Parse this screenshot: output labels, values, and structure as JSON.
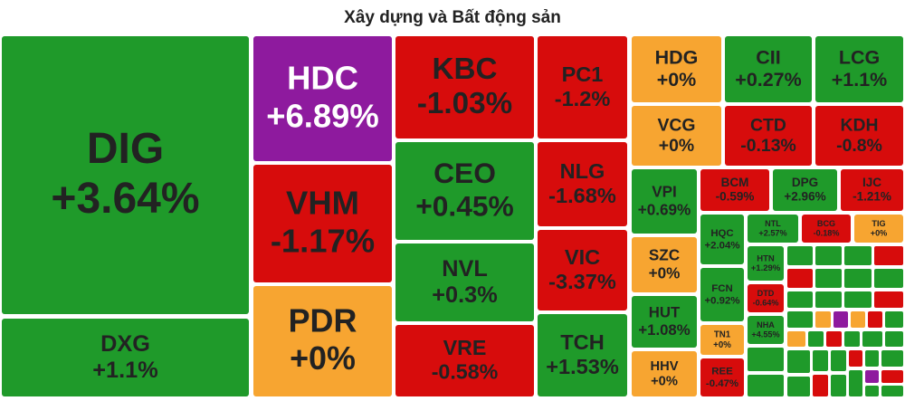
{
  "chart_data": {
    "type": "treemap",
    "title": "Xây dựng và Bất động sản",
    "categories": [
      "DIG",
      "DXG",
      "HDC",
      "VHM",
      "PDR",
      "KBC",
      "CEO",
      "NVL",
      "VRE",
      "PC1",
      "NLG",
      "VIC",
      "TCH",
      "HDG",
      "VCG",
      "CII",
      "LCG",
      "CTD",
      "KDH",
      "VPI",
      "SZC",
      "HUT",
      "HHV",
      "BCM",
      "DPG",
      "IJC",
      "HQC",
      "FCN",
      "TN1",
      "REE",
      "NTL",
      "BCG",
      "TIG",
      "HTN",
      "DTD",
      "NHA"
    ],
    "values": [
      3.64,
      1.1,
      6.89,
      -1.17,
      0,
      -1.03,
      0.45,
      0.3,
      -0.58,
      -1.2,
      -1.68,
      -3.37,
      1.53,
      0,
      0,
      0.27,
      1.1,
      -0.13,
      -0.8,
      0.69,
      0,
      1.08,
      0,
      -0.59,
      2.96,
      -1.21,
      2.04,
      0.92,
      0,
      -0.47,
      2.57,
      -0.18,
      0,
      1.29,
      -0.64,
      4.55
    ],
    "value_labels": [
      "+3.64%",
      "+1.1%",
      "+6.89%",
      "-1.17%",
      "+0%",
      "-1.03%",
      "+0.45%",
      "+0.3%",
      "-0.58%",
      "-1.2%",
      "-1.68%",
      "-3.37%",
      "+1.53%",
      "+0%",
      "+0%",
      "+0.27%",
      "+1.1%",
      "-0.13%",
      "-0.8%",
      "+0.69%",
      "+0%",
      "+1.08%",
      "+0%",
      "-0.59%",
      "+2.96%",
      "-1.21%",
      "+2.04%",
      "+0.92%",
      "+0%",
      "-0.47%",
      "+2.57%",
      "-0.18%",
      "+0%",
      "+1.29%",
      "-0.64%",
      "+4.55%"
    ],
    "colors": [
      "#1f9a2a",
      "#1f9a2a",
      "#8e1a9e",
      "#d70c0c",
      "#f7a531",
      "#d70c0c",
      "#1f9a2a",
      "#1f9a2a",
      "#d70c0c",
      "#d70c0c",
      "#d70c0c",
      "#d70c0c",
      "#1f9a2a",
      "#f7a531",
      "#f7a531",
      "#1f9a2a",
      "#1f9a2a",
      "#d70c0c",
      "#d70c0c",
      "#1f9a2a",
      "#f7a531",
      "#1f9a2a",
      "#f7a531",
      "#d70c0c",
      "#1f9a2a",
      "#d70c0c",
      "#1f9a2a",
      "#1f9a2a",
      "#f7a531",
      "#d70c0c",
      "#1f9a2a",
      "#d70c0c",
      "#f7a531",
      "#1f9a2a",
      "#d70c0c",
      "#1f9a2a"
    ]
  }
}
